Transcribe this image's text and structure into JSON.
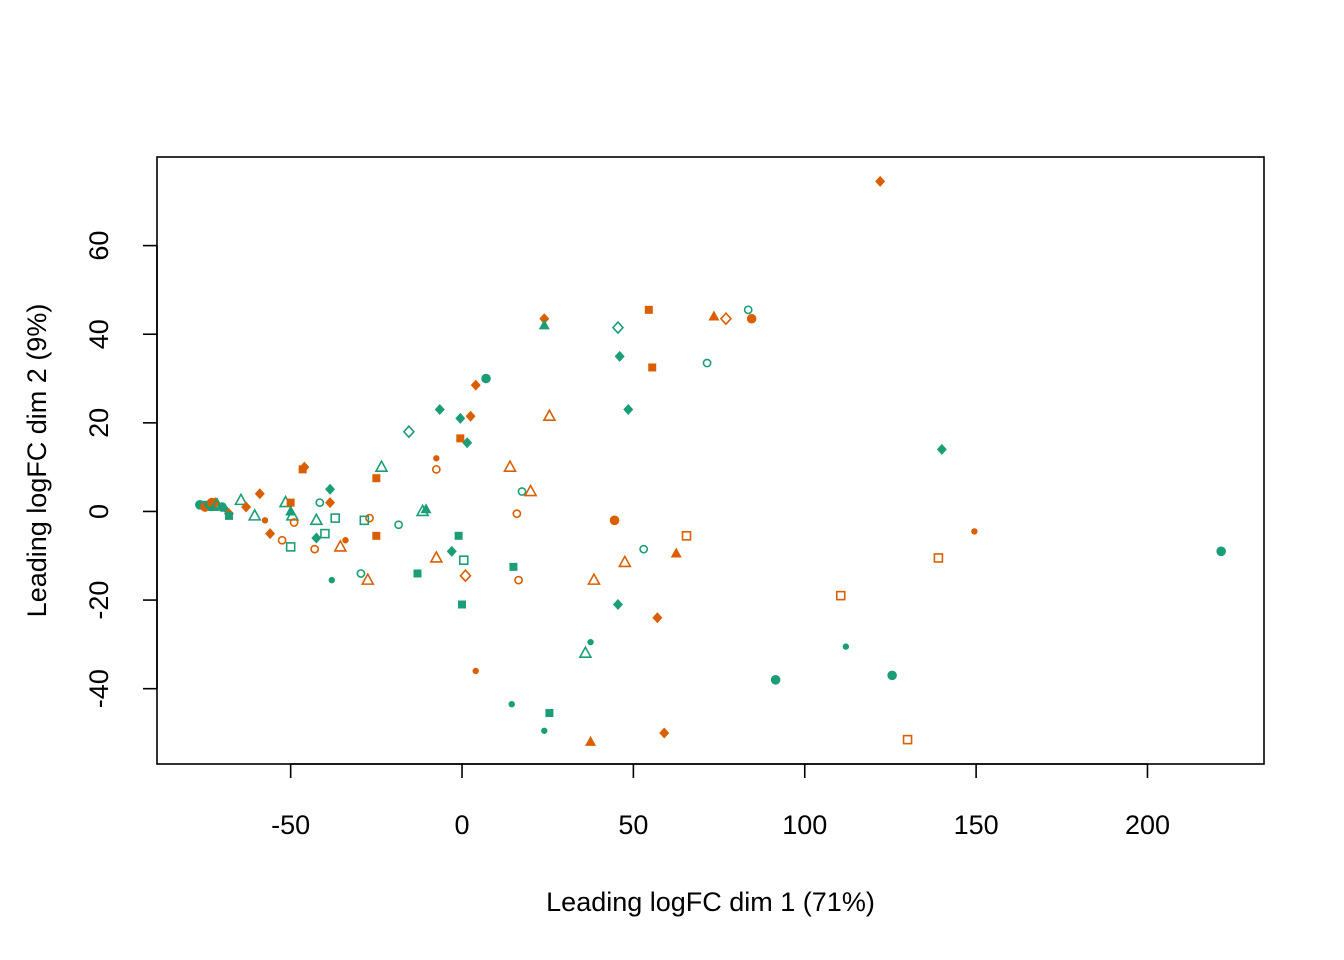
{
  "chart_data": {
    "type": "scatter",
    "title": "",
    "xlabel": "Leading logFC dim 1 (71%)",
    "ylabel": "Leading logFC dim 2 (9%)",
    "xlim": [
      -89,
      234
    ],
    "ylim": [
      -57,
      80
    ],
    "x_ticks": [
      -50,
      0,
      50,
      100,
      150,
      200
    ],
    "y_ticks": [
      -40,
      -20,
      0,
      20,
      40,
      60
    ],
    "x_tick_labels": [
      "-50",
      "0",
      "50",
      "100",
      "150",
      "200"
    ],
    "y_tick_labels": [
      "-40",
      "-20",
      "0",
      "20",
      "40",
      "60"
    ],
    "grid": false,
    "legend": "none",
    "colors": {
      "orange": "#D95F02",
      "green": "#1B9E77"
    },
    "marker_styles": [
      "filled-circle",
      "small-dot",
      "open-circle",
      "filled-square",
      "open-square",
      "filled-triangle",
      "open-triangle",
      "filled-diamond",
      "open-diamond"
    ],
    "points": [
      {
        "x": 122,
        "y": 74.5,
        "color": "orange",
        "shape": "filled-diamond"
      },
      {
        "x": 54.5,
        "y": 45.5,
        "color": "orange",
        "shape": "filled-square"
      },
      {
        "x": 55.5,
        "y": 32.5,
        "color": "orange",
        "shape": "filled-square"
      },
      {
        "x": 73.5,
        "y": 44,
        "color": "orange",
        "shape": "filled-triangle"
      },
      {
        "x": 77,
        "y": 43.5,
        "color": "orange",
        "shape": "open-diamond"
      },
      {
        "x": 84.5,
        "y": 43.5,
        "color": "orange",
        "shape": "filled-circle"
      },
      {
        "x": 83.5,
        "y": 45.5,
        "color": "green",
        "shape": "open-circle"
      },
      {
        "x": 71.5,
        "y": 33.5,
        "color": "green",
        "shape": "open-circle"
      },
      {
        "x": 24,
        "y": 43.5,
        "color": "orange",
        "shape": "filled-diamond"
      },
      {
        "x": 24,
        "y": 42,
        "color": "green",
        "shape": "filled-triangle"
      },
      {
        "x": 45.5,
        "y": 41.5,
        "color": "green",
        "shape": "open-diamond"
      },
      {
        "x": 46,
        "y": 35,
        "color": "green",
        "shape": "filled-diamond"
      },
      {
        "x": 48.5,
        "y": 23,
        "color": "green",
        "shape": "filled-diamond"
      },
      {
        "x": 25.5,
        "y": 21.5,
        "color": "orange",
        "shape": "open-triangle"
      },
      {
        "x": 7,
        "y": 30,
        "color": "green",
        "shape": "filled-circle"
      },
      {
        "x": 4,
        "y": 28.5,
        "color": "orange",
        "shape": "filled-diamond"
      },
      {
        "x": -6.5,
        "y": 23,
        "color": "green",
        "shape": "filled-diamond"
      },
      {
        "x": -0.5,
        "y": 21,
        "color": "green",
        "shape": "filled-diamond"
      },
      {
        "x": 2.5,
        "y": 21.5,
        "color": "orange",
        "shape": "filled-diamond"
      },
      {
        "x": 1.5,
        "y": 15.5,
        "color": "green",
        "shape": "filled-diamond"
      },
      {
        "x": -0.5,
        "y": 16.5,
        "color": "orange",
        "shape": "filled-square"
      },
      {
        "x": -15.5,
        "y": 18,
        "color": "green",
        "shape": "open-diamond"
      },
      {
        "x": 140,
        "y": 14,
        "color": "green",
        "shape": "filled-diamond"
      },
      {
        "x": -7.5,
        "y": 12,
        "color": "orange",
        "shape": "small-dot"
      },
      {
        "x": -7.5,
        "y": 9.5,
        "color": "orange",
        "shape": "open-circle"
      },
      {
        "x": 14,
        "y": 10,
        "color": "orange",
        "shape": "open-triangle"
      },
      {
        "x": -23.5,
        "y": 10,
        "color": "green",
        "shape": "open-triangle"
      },
      {
        "x": -25,
        "y": 7.5,
        "color": "orange",
        "shape": "filled-square"
      },
      {
        "x": -46,
        "y": 10,
        "color": "orange",
        "shape": "filled-diamond"
      },
      {
        "x": -46.5,
        "y": 9.5,
        "color": "orange",
        "shape": "filled-square"
      },
      {
        "x": 17.5,
        "y": 4.5,
        "color": "green",
        "shape": "open-circle"
      },
      {
        "x": 20,
        "y": 4.5,
        "color": "orange",
        "shape": "open-triangle"
      },
      {
        "x": -38.5,
        "y": 5,
        "color": "green",
        "shape": "filled-diamond"
      },
      {
        "x": -38.5,
        "y": 2,
        "color": "orange",
        "shape": "filled-diamond"
      },
      {
        "x": -41.5,
        "y": 2,
        "color": "green",
        "shape": "open-circle"
      },
      {
        "x": -10.5,
        "y": 0.5,
        "color": "green",
        "shape": "filled-triangle"
      },
      {
        "x": -11.5,
        "y": 0,
        "color": "green",
        "shape": "open-triangle"
      },
      {
        "x": -59,
        "y": 4,
        "color": "orange",
        "shape": "filled-diamond"
      },
      {
        "x": -64.5,
        "y": 2.5,
        "color": "green",
        "shape": "open-triangle"
      },
      {
        "x": -63,
        "y": 1,
        "color": "orange",
        "shape": "filled-diamond"
      },
      {
        "x": -51.5,
        "y": 2,
        "color": "green",
        "shape": "open-triangle"
      },
      {
        "x": -50,
        "y": 2,
        "color": "orange",
        "shape": "filled-square"
      },
      {
        "x": -50,
        "y": 0,
        "color": "green",
        "shape": "filled-triangle"
      },
      {
        "x": -49.5,
        "y": -1,
        "color": "green",
        "shape": "open-triangle"
      },
      {
        "x": -49,
        "y": -2.5,
        "color": "orange",
        "shape": "open-circle"
      },
      {
        "x": -60.5,
        "y": -1,
        "color": "green",
        "shape": "open-triangle"
      },
      {
        "x": -57.5,
        "y": -2,
        "color": "orange",
        "shape": "small-dot"
      },
      {
        "x": -56,
        "y": -5,
        "color": "orange",
        "shape": "filled-diamond"
      },
      {
        "x": -52.5,
        "y": -6.5,
        "color": "orange",
        "shape": "open-circle"
      },
      {
        "x": -50,
        "y": -8,
        "color": "green",
        "shape": "open-square"
      },
      {
        "x": -42.5,
        "y": -2,
        "color": "green",
        "shape": "open-triangle"
      },
      {
        "x": -37,
        "y": -1.5,
        "color": "green",
        "shape": "open-square"
      },
      {
        "x": -40,
        "y": -5,
        "color": "green",
        "shape": "open-square"
      },
      {
        "x": -42.5,
        "y": -6,
        "color": "green",
        "shape": "filled-diamond"
      },
      {
        "x": -34,
        "y": -6.5,
        "color": "orange",
        "shape": "small-dot"
      },
      {
        "x": -35.5,
        "y": -8,
        "color": "orange",
        "shape": "open-triangle"
      },
      {
        "x": -43,
        "y": -8.5,
        "color": "orange",
        "shape": "open-circle"
      },
      {
        "x": -27,
        "y": -1.5,
        "color": "orange",
        "shape": "open-circle"
      },
      {
        "x": -28.5,
        "y": -2,
        "color": "green",
        "shape": "open-square"
      },
      {
        "x": -25,
        "y": -5.5,
        "color": "orange",
        "shape": "filled-square"
      },
      {
        "x": -18.5,
        "y": -3,
        "color": "green",
        "shape": "open-circle"
      },
      {
        "x": 16,
        "y": -0.5,
        "color": "orange",
        "shape": "open-circle"
      },
      {
        "x": 44.5,
        "y": -2,
        "color": "orange",
        "shape": "filled-circle"
      },
      {
        "x": -1,
        "y": -5.5,
        "color": "green",
        "shape": "filled-square"
      },
      {
        "x": -3,
        "y": -9,
        "color": "green",
        "shape": "filled-diamond"
      },
      {
        "x": 0.5,
        "y": -11,
        "color": "green",
        "shape": "open-square"
      },
      {
        "x": -7.5,
        "y": -10.5,
        "color": "orange",
        "shape": "open-triangle"
      },
      {
        "x": 15,
        "y": -12.5,
        "color": "green",
        "shape": "filled-square"
      },
      {
        "x": 16.5,
        "y": -15.5,
        "color": "orange",
        "shape": "open-circle"
      },
      {
        "x": 1,
        "y": -14.5,
        "color": "orange",
        "shape": "open-diamond"
      },
      {
        "x": -13,
        "y": -14,
        "color": "green",
        "shape": "filled-square"
      },
      {
        "x": -29.5,
        "y": -14,
        "color": "green",
        "shape": "open-circle"
      },
      {
        "x": -27.5,
        "y": -15.5,
        "color": "orange",
        "shape": "open-triangle"
      },
      {
        "x": -38,
        "y": -15.5,
        "color": "green",
        "shape": "small-dot"
      },
      {
        "x": 0,
        "y": -21,
        "color": "green",
        "shape": "filled-square"
      },
      {
        "x": 38.5,
        "y": -15.5,
        "color": "orange",
        "shape": "open-triangle"
      },
      {
        "x": 47.5,
        "y": -11.5,
        "color": "orange",
        "shape": "open-triangle"
      },
      {
        "x": 53,
        "y": -8.5,
        "color": "green",
        "shape": "open-circle"
      },
      {
        "x": 65.5,
        "y": -5.5,
        "color": "orange",
        "shape": "open-square"
      },
      {
        "x": 62.5,
        "y": -9.5,
        "color": "orange",
        "shape": "filled-triangle"
      },
      {
        "x": 45.5,
        "y": -21,
        "color": "green",
        "shape": "filled-diamond"
      },
      {
        "x": 57,
        "y": -24,
        "color": "orange",
        "shape": "filled-diamond"
      },
      {
        "x": 139,
        "y": -10.5,
        "color": "orange",
        "shape": "open-square"
      },
      {
        "x": 149.5,
        "y": -4.5,
        "color": "orange",
        "shape": "small-dot"
      },
      {
        "x": 110.5,
        "y": -19,
        "color": "orange",
        "shape": "open-square"
      },
      {
        "x": 221.5,
        "y": -9,
        "color": "green",
        "shape": "filled-circle"
      },
      {
        "x": 112,
        "y": -30.5,
        "color": "green",
        "shape": "small-dot"
      },
      {
        "x": 125.5,
        "y": -37,
        "color": "green",
        "shape": "filled-circle"
      },
      {
        "x": 91.5,
        "y": -38,
        "color": "green",
        "shape": "filled-circle"
      },
      {
        "x": 37.5,
        "y": -29.5,
        "color": "green",
        "shape": "small-dot"
      },
      {
        "x": 36,
        "y": -32,
        "color": "green",
        "shape": "open-triangle"
      },
      {
        "x": 4,
        "y": -36,
        "color": "orange",
        "shape": "small-dot"
      },
      {
        "x": 14.5,
        "y": -43.5,
        "color": "green",
        "shape": "small-dot"
      },
      {
        "x": 25.5,
        "y": -45.5,
        "color": "green",
        "shape": "filled-square"
      },
      {
        "x": 24,
        "y": -49.5,
        "color": "green",
        "shape": "small-dot"
      },
      {
        "x": 37.5,
        "y": -52,
        "color": "orange",
        "shape": "filled-triangle"
      },
      {
        "x": 59,
        "y": -50,
        "color": "orange",
        "shape": "filled-diamond"
      },
      {
        "x": 130,
        "y": -51.5,
        "color": "orange",
        "shape": "open-square"
      },
      {
        "x": -76.5,
        "y": 1.5,
        "color": "green",
        "shape": "filled-circle"
      },
      {
        "x": -75.5,
        "y": 1.5,
        "color": "green",
        "shape": "filled-square"
      },
      {
        "x": -75,
        "y": 1,
        "color": "orange",
        "shape": "filled-circle"
      },
      {
        "x": -74,
        "y": 1.5,
        "color": "green",
        "shape": "filled-diamond"
      },
      {
        "x": -73,
        "y": 2,
        "color": "orange",
        "shape": "filled-circle"
      },
      {
        "x": -72.5,
        "y": 1,
        "color": "green",
        "shape": "filled-triangle"
      },
      {
        "x": -72,
        "y": 2,
        "color": "orange",
        "shape": "filled-diamond"
      },
      {
        "x": -71.5,
        "y": 1.5,
        "color": "green",
        "shape": "open-triangle"
      },
      {
        "x": -70.5,
        "y": 1,
        "color": "orange",
        "shape": "small-dot"
      },
      {
        "x": -70,
        "y": 1,
        "color": "green",
        "shape": "filled-circle"
      },
      {
        "x": -69,
        "y": 0.5,
        "color": "green",
        "shape": "small-dot"
      },
      {
        "x": -68,
        "y": -0.5,
        "color": "orange",
        "shape": "filled-diamond"
      },
      {
        "x": -68,
        "y": -1,
        "color": "green",
        "shape": "filled-square"
      }
    ]
  }
}
